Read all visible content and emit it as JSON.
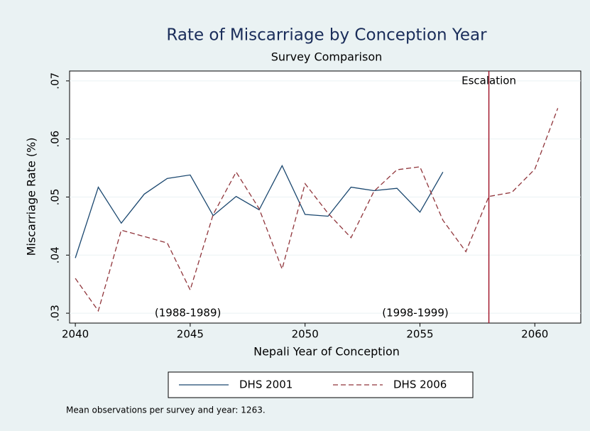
{
  "chart_data": {
    "type": "line",
    "title": "Rate of Miscarriage by Conception Year",
    "subtitle": "Survey Comparison",
    "x_label": "Nepali Year of Conception",
    "y_label": "Miscarriage Rate (%)",
    "note": "Mean observations per survey and year: 1263.",
    "xlim": [
      2039.75,
      2062.0
    ],
    "ylim": [
      0.0283,
      0.0717
    ],
    "xticks": [
      2040,
      2045,
      2050,
      2055,
      2060
    ],
    "yticks": [
      {
        "value": 0.03,
        "label": ".03"
      },
      {
        "value": 0.04,
        "label": ".04"
      },
      {
        "value": 0.05,
        "label": ".05"
      },
      {
        "value": 0.06,
        "label": ".06"
      },
      {
        "value": 0.07,
        "label": ".07"
      }
    ],
    "grid": true,
    "series": [
      {
        "name": "DHS 2001",
        "color": "#1a476f",
        "dash": "solid",
        "x": [
          2040,
          2041,
          2042,
          2043,
          2044,
          2045,
          2046,
          2047,
          2048,
          2049,
          2050,
          2051,
          2052,
          2053,
          2054,
          2055,
          2056
        ],
        "values": [
          0.0395,
          0.0517,
          0.0455,
          0.0505,
          0.0532,
          0.0538,
          0.0468,
          0.0501,
          0.0478,
          0.0554,
          0.047,
          0.0467,
          0.0517,
          0.0511,
          0.0515,
          0.0474,
          0.0543
        ]
      },
      {
        "name": "DHS 2006",
        "color": "#90353b",
        "dash": "dashed",
        "x": [
          2040,
          2041,
          2042,
          2043,
          2044,
          2045,
          2046,
          2047,
          2048,
          2049,
          2050,
          2051,
          2052,
          2053,
          2054,
          2055,
          2056,
          2057,
          2058,
          2059,
          2060,
          2061
        ],
        "values": [
          0.036,
          0.0304,
          0.0443,
          0.0432,
          0.0421,
          0.034,
          0.047,
          0.0543,
          0.048,
          0.0376,
          0.0523,
          0.0472,
          0.043,
          0.051,
          0.0547,
          0.0552,
          0.046,
          0.0406,
          0.0501,
          0.0508,
          0.0548,
          0.0653
        ]
      }
    ],
    "vline": {
      "x": 2058,
      "label": "Escalation",
      "label_y": 0.07,
      "color": "#a31a2e"
    },
    "annotations": [
      {
        "text": "(1988-1989)",
        "x": 2044.9,
        "y": 0.03
      },
      {
        "text": "(1998-1999)",
        "x": 2054.8,
        "y": 0.03
      }
    ]
  }
}
